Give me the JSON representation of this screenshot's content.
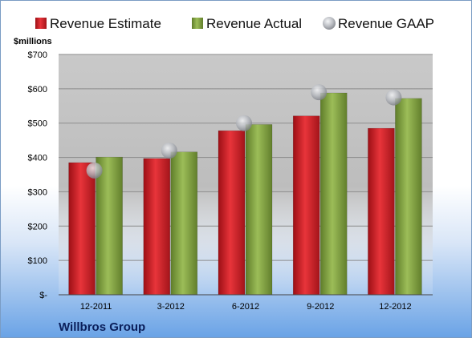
{
  "chart_data": {
    "type": "bar",
    "ylabel": "$millions",
    "categories": [
      "12-2011",
      "3-2012",
      "6-2012",
      "9-2012",
      "12-2012"
    ],
    "series": [
      {
        "name": "Revenue Estimate",
        "kind": "bar",
        "color": "#d9232a",
        "values": [
          385,
          397,
          478,
          521,
          485
        ]
      },
      {
        "name": "Revenue Actual",
        "kind": "bar",
        "color": "#8fb04a",
        "values": [
          401,
          416,
          496,
          588,
          572
        ]
      },
      {
        "name": "Revenue GAAP",
        "kind": "marker",
        "color": "#b8bcc4",
        "values": [
          362,
          420,
          500,
          590,
          575
        ]
      }
    ],
    "ylim": [
      0,
      700
    ],
    "yticks": [
      0,
      100,
      200,
      300,
      400,
      500,
      600,
      700
    ],
    "ytick_labels": [
      "$-",
      "$100",
      "$200",
      "$300",
      "$400",
      "$500",
      "$600",
      "$700"
    ],
    "grid": true,
    "legend_position": "top"
  },
  "company_name": "Willbros Group"
}
